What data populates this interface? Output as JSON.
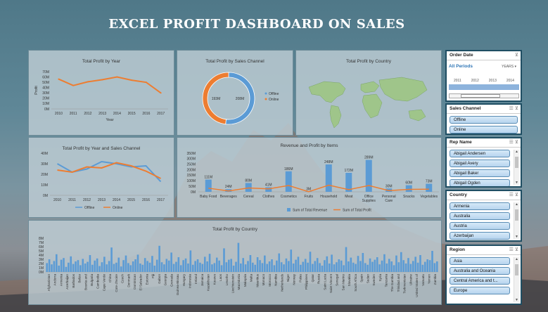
{
  "dashboard_title": "EXCEL PROFIT DASHBOARD ON SALES",
  "colors": {
    "blue": "#5b9bd5",
    "orange": "#ed7d31",
    "green": "#9fc58a"
  },
  "chart_data": [
    {
      "id": "profit_by_year",
      "type": "line",
      "title": "Total Profit by Year",
      "xlabel": "Year",
      "ylabel": "Profit",
      "x": [
        "2010",
        "2011",
        "2012",
        "2013",
        "2014",
        "2015",
        "2016",
        "2017"
      ],
      "values": [
        56,
        44,
        51,
        55,
        60,
        54,
        50,
        30
      ],
      "yticks": [
        "0M",
        "10M",
        "20M",
        "30M",
        "40M",
        "50M",
        "60M",
        "70M"
      ],
      "ylim": [
        0,
        70
      ]
    },
    {
      "id": "profit_by_channel",
      "type": "pie",
      "title": "Total Profit by Sales Channel",
      "slices": [
        {
          "name": "Offline",
          "value": 208,
          "label": "208M"
        },
        {
          "name": "Online",
          "value": 193,
          "label": "193M"
        }
      ]
    },
    {
      "id": "profit_by_country_map",
      "type": "map",
      "title": "Total Profit by Country"
    },
    {
      "id": "profit_by_year_channel",
      "type": "line",
      "title": "Total Profit by Year and Sales Channel",
      "x": [
        "2010",
        "2011",
        "2012",
        "2013",
        "2014",
        "2015",
        "2016",
        "2017"
      ],
      "yticks": [
        "0M",
        "10M",
        "20M",
        "30M",
        "40M"
      ],
      "ylim": [
        0,
        40
      ],
      "series": [
        {
          "name": "Offline",
          "values": [
            30,
            22,
            25,
            32,
            30,
            27,
            28,
            13
          ]
        },
        {
          "name": "Online",
          "values": [
            24,
            22,
            27,
            26,
            31,
            28,
            23,
            16
          ]
        }
      ]
    },
    {
      "id": "revenue_profit_items",
      "type": "bar",
      "title": "Revenue and Profit by Items",
      "categories": [
        "Baby Food",
        "Beverages",
        "Cereal",
        "Clothes",
        "Cosmetics",
        "Fruits",
        "Household",
        "Meat",
        "Office Supplies",
        "Personal Care",
        "Snacks",
        "Vegetables"
      ],
      "series": [
        {
          "name": "Sum of Total Revenue",
          "values": [
            111,
            24,
            80,
            41,
            186,
            3,
            248,
            172,
            289,
            30,
            60,
            73
          ]
        },
        {
          "name": "Sum of Total Profit",
          "values": [
            33,
            8,
            35,
            27,
            57,
            1,
            60,
            20,
            57,
            11,
            22,
            24
          ]
        }
      ],
      "labels": [
        "111M",
        "24M",
        "80M",
        "41M",
        "186M",
        "3M",
        "248M",
        "172M",
        "289M",
        "30M",
        "60M",
        "73M"
      ],
      "yticks": [
        "0M",
        "50M",
        "100M",
        "150M",
        "200M",
        "250M",
        "300M",
        "350M"
      ],
      "ylim": [
        0,
        350
      ]
    },
    {
      "id": "profit_by_country_bar",
      "type": "bar",
      "title": "Total Profit by Country",
      "yticks": [
        "0M",
        "1M",
        "2M",
        "3M",
        "4M",
        "5M",
        "6M",
        "7M",
        "8M"
      ],
      "ylim": [
        0,
        8
      ],
      "country_labels": [
        "Afghanistan",
        "Andorra",
        "Armenia",
        "Azerbaijan",
        "Barbados",
        "Belize",
        "Bosnia and",
        "Bulgaria",
        "Cambodia",
        "Cape Verde",
        "China",
        "Cote d'Ivoire",
        "Czech",
        "Denmark",
        "Dominican",
        "El Salvador",
        "Estonia",
        "Fiji",
        "Gabon",
        "Georgia",
        "Grenada",
        "Guinea-Bissau",
        "Hungary",
        "Indonesia",
        "Ireland",
        "Jamaica",
        "Kazakhstan",
        "Kosovo",
        "Laos",
        "Lesotho",
        "Liechtenstein",
        "Macedonia",
        "Malaysia",
        "Malta",
        "Mauritius",
        "Monaco",
        "Morocco",
        "Namibia",
        "Netherlands",
        "Niger",
        "Norway",
        "Palau",
        "Philippines",
        "Qatar",
        "Russia",
        "Saint Lucia",
        "Saint Vincent",
        "Senegal",
        "San Marino",
        "Slovakia",
        "South Africa",
        "Spain",
        "Sudan",
        "Sweden",
        "Syria",
        "Tanzania",
        "The Gambia",
        "Trinidad and",
        "Turkmenistan",
        "Ukraine",
        "United States of",
        "Vanuatu",
        "Yemen",
        "Zambia"
      ],
      "values": [
        2.1,
        3.0,
        1.8,
        2.6,
        4.2,
        1.5,
        2.9,
        3.3,
        1.2,
        2.2,
        3.7,
        1.9,
        2.5,
        2.8,
        1.6,
        3.1,
        2.0,
        2.4,
        4.0,
        1.7,
        2.7,
        3.2,
        1.4,
        2.3,
        3.6,
        1.8,
        2.6,
        5.8,
        1.9,
        2.2,
        3.4,
        1.3,
        2.8,
        3.9,
        2.1,
        1.6,
        2.5,
        3.0,
        4.1,
        2.0,
        1.7,
        3.3,
        2.6,
        2.2,
        3.8,
        1.5,
        2.9,
        6.2,
        2.3,
        1.8,
        3.1,
        2.7,
        4.6,
        1.9,
        2.4,
        3.5,
        1.6,
        2.8,
        3.2,
        2.0,
        5.1,
        1.7,
        2.6,
        3.0,
        2.2,
        1.9,
        3.6,
        2.5,
        4.3,
        1.8,
        2.1,
        3.4,
        2.7,
        1.6,
        5.6,
        2.3,
        2.9,
        3.1,
        1.5,
        2.4,
        6.9,
        2.0,
        3.3,
        1.8,
        2.6,
        4.0,
        2.2,
        1.7,
        3.5,
        2.8,
        2.1,
        3.9,
        1.9,
        2.5,
        3.0,
        1.6,
        2.7,
        4.4,
        2.3,
        1.8,
        3.2,
        2.6,
        5.3,
        2.0,
        2.9,
        3.6,
        1.7,
        2.4,
        3.1,
        2.2,
        4.8,
        1.9,
        2.6,
        3.3,
        2.1,
        1.5,
        2.8,
        3.7,
        2.0,
        4.1,
        1.8,
        2.3,
        3.0,
        2.7,
        1.6,
        5.9,
        2.5,
        3.4,
        2.2,
        1.9,
        3.8,
        2.6,
        4.5,
        2.1,
        1.7,
        3.2,
        2.4,
        2.9,
        3.5,
        1.8,
        2.7,
        4.2,
        2.0,
        3.1,
        2.5,
        1.6,
        3.9,
        2.3,
        4.7,
        2.8,
        2.0,
        3.3,
        1.9,
        2.6,
        3.6,
        2.2,
        4.0,
        1.7,
        2.4,
        3.0,
        2.8,
        5.0,
        2.1,
        2.5
      ]
    }
  ],
  "slicers": {
    "order_date": {
      "title": "Order Date",
      "selected": "All Periods",
      "level": "YEARS",
      "years": [
        "2011",
        "2012",
        "2013",
        "2014"
      ]
    },
    "sales_channel": {
      "title": "Sales Channel",
      "items": [
        "Offline",
        "Online"
      ]
    },
    "rep_name": {
      "title": "Rep Name",
      "items": [
        "Abigail Andersen",
        "Abigail Avery",
        "Abigail Baker",
        "Abigail Ogden"
      ]
    },
    "country": {
      "title": "Country",
      "items": [
        "Armenia",
        "Australia",
        "Austria",
        "Azerbaijan"
      ]
    },
    "region": {
      "title": "Region",
      "items": [
        "Asia",
        "Australia and Oceania",
        "Central America and t...",
        "Europe"
      ]
    }
  }
}
